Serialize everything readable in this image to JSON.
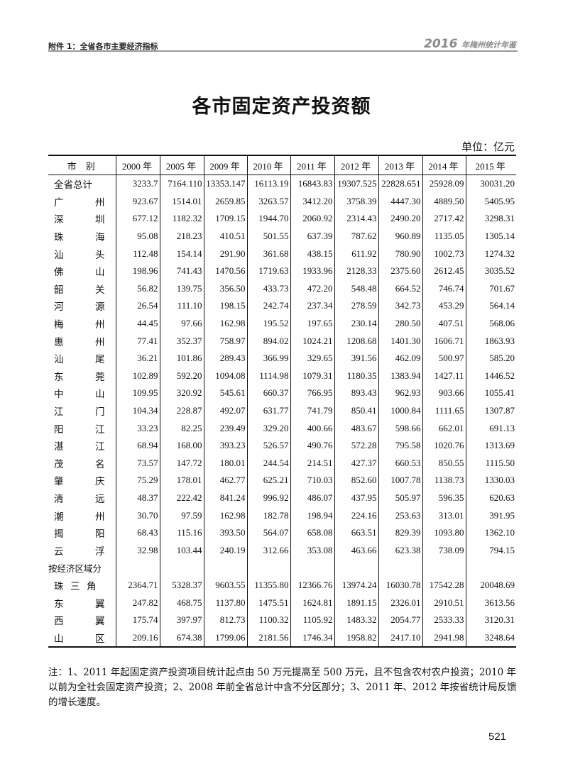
{
  "header": {
    "left": "附件 1：全省各市主要经济指标",
    "right_year": "2016",
    "right_book": "年梅州统计年鉴"
  },
  "title": "各市固定资产投资额",
  "unit": "单位：亿元",
  "table": {
    "columns": [
      "市　别",
      "2000 年",
      "2005 年",
      "2009 年",
      "2010 年",
      "2011 年",
      "2012 年",
      "2013 年",
      "2014 年",
      "2015 年"
    ],
    "rows": [
      {
        "name": [
          "全省总计"
        ],
        "values": [
          "3233.7",
          "7164.110",
          "13353.147",
          "16113.19",
          "16843.83",
          "19307.525",
          "22828.651",
          "25928.09",
          "30031.20"
        ]
      },
      {
        "name": [
          "广",
          "州"
        ],
        "values": [
          "923.67",
          "1514.01",
          "2659.85",
          "3263.57",
          "3412.20",
          "3758.39",
          "4447.30",
          "4889.50",
          "5405.95"
        ]
      },
      {
        "name": [
          "深",
          "圳"
        ],
        "values": [
          "677.12",
          "1182.32",
          "1709.15",
          "1944.70",
          "2060.92",
          "2314.43",
          "2490.20",
          "2717.42",
          "3298.31"
        ]
      },
      {
        "name": [
          "珠",
          "海"
        ],
        "values": [
          "95.08",
          "218.23",
          "410.51",
          "501.55",
          "637.39",
          "787.62",
          "960.89",
          "1135.05",
          "1305.14"
        ]
      },
      {
        "name": [
          "汕",
          "头"
        ],
        "values": [
          "112.48",
          "154.14",
          "291.90",
          "361.68",
          "438.15",
          "611.92",
          "780.90",
          "1002.73",
          "1274.32"
        ]
      },
      {
        "name": [
          "佛",
          "山"
        ],
        "values": [
          "198.96",
          "741.43",
          "1470.56",
          "1719.63",
          "1933.96",
          "2128.33",
          "2375.60",
          "2612.45",
          "3035.52"
        ]
      },
      {
        "name": [
          "韶",
          "关"
        ],
        "values": [
          "56.82",
          "139.75",
          "356.50",
          "433.73",
          "472.20",
          "548.48",
          "664.52",
          "746.74",
          "701.67"
        ]
      },
      {
        "name": [
          "河",
          "源"
        ],
        "values": [
          "26.54",
          "111.10",
          "198.15",
          "242.74",
          "237.34",
          "278.59",
          "342.73",
          "453.29",
          "564.14"
        ]
      },
      {
        "name": [
          "梅",
          "州"
        ],
        "values": [
          "44.45",
          "97.66",
          "162.98",
          "195.52",
          "197.65",
          "230.14",
          "280.50",
          "407.51",
          "568.06"
        ]
      },
      {
        "name": [
          "惠",
          "州"
        ],
        "values": [
          "77.41",
          "352.37",
          "758.97",
          "894.02",
          "1024.21",
          "1208.68",
          "1401.30",
          "1606.71",
          "1863.93"
        ]
      },
      {
        "name": [
          "汕",
          "尾"
        ],
        "values": [
          "36.21",
          "101.86",
          "289.43",
          "366.99",
          "329.65",
          "391.56",
          "462.09",
          "500.97",
          "585.20"
        ]
      },
      {
        "name": [
          "东",
          "莞"
        ],
        "values": [
          "102.89",
          "592.20",
          "1094.08",
          "1114.98",
          "1079.31",
          "1180.35",
          "1383.94",
          "1427.11",
          "1446.52"
        ]
      },
      {
        "name": [
          "中",
          "山"
        ],
        "values": [
          "109.95",
          "320.92",
          "545.61",
          "660.37",
          "766.95",
          "893.43",
          "962.93",
          "903.66",
          "1055.41"
        ]
      },
      {
        "name": [
          "江",
          "门"
        ],
        "values": [
          "104.34",
          "228.87",
          "492.07",
          "631.77",
          "741.79",
          "850.41",
          "1000.84",
          "1111.65",
          "1307.87"
        ]
      },
      {
        "name": [
          "阳",
          "江"
        ],
        "values": [
          "33.23",
          "82.25",
          "239.49",
          "329.20",
          "400.66",
          "483.67",
          "598.66",
          "662.01",
          "691.13"
        ]
      },
      {
        "name": [
          "湛",
          "江"
        ],
        "values": [
          "68.94",
          "168.00",
          "393.23",
          "526.57",
          "490.76",
          "572.28",
          "795.58",
          "1020.76",
          "1313.69"
        ]
      },
      {
        "name": [
          "茂",
          "名"
        ],
        "values": [
          "73.57",
          "147.72",
          "180.01",
          "244.54",
          "214.51",
          "427.37",
          "660.53",
          "850.55",
          "1115.50"
        ]
      },
      {
        "name": [
          "肇",
          "庆"
        ],
        "values": [
          "75.29",
          "178.01",
          "462.77",
          "625.21",
          "710.03",
          "852.60",
          "1007.78",
          "1138.73",
          "1330.03"
        ]
      },
      {
        "name": [
          "清",
          "远"
        ],
        "values": [
          "48.37",
          "222.42",
          "841.24",
          "996.92",
          "486.07",
          "437.95",
          "505.97",
          "596.35",
          "620.63"
        ]
      },
      {
        "name": [
          "潮",
          "州"
        ],
        "values": [
          "30.70",
          "97.59",
          "162.98",
          "182.78",
          "198.94",
          "224.16",
          "253.63",
          "313.01",
          "391.95"
        ]
      },
      {
        "name": [
          "揭",
          "阳"
        ],
        "values": [
          "68.43",
          "115.16",
          "393.50",
          "564.07",
          "658.08",
          "663.51",
          "829.39",
          "1093.80",
          "1362.10"
        ]
      },
      {
        "name": [
          "云",
          "浮"
        ],
        "values": [
          "32.98",
          "103.44",
          "240.19",
          "312.66",
          "353.08",
          "463.66",
          "623.38",
          "738.09",
          "794.15"
        ]
      },
      {
        "section": "按经济区域分"
      },
      {
        "name": [
          "珠",
          "三",
          "角"
        ],
        "values": [
          "2364.71",
          "5328.37",
          "9603.55",
          "11355.80",
          "12366.76",
          "13974.24",
          "16030.78",
          "17542.28",
          "20048.69"
        ]
      },
      {
        "name": [
          "东",
          "翼"
        ],
        "values": [
          "247.82",
          "468.75",
          "1137.80",
          "1475.51",
          "1624.81",
          "1891.15",
          "2326.01",
          "2910.51",
          "3613.56"
        ]
      },
      {
        "name": [
          "西",
          "翼"
        ],
        "values": [
          "175.74",
          "397.97",
          "812.73",
          "1100.32",
          "1105.92",
          "1483.32",
          "2054.77",
          "2533.33",
          "3120.31"
        ]
      },
      {
        "name": [
          "山",
          "区"
        ],
        "values": [
          "209.16",
          "674.38",
          "1799.06",
          "2181.56",
          "1746.34",
          "1958.82",
          "2417.10",
          "2941.98",
          "3248.64"
        ]
      }
    ]
  },
  "notes": "注：1、2011 年起固定资产投资项目统计起点由 50 万元提高至 500 万元，且不包含农村农户投资；2010 年以前为全社会固定资产投资；2、2008 年前全省总计中含不分区部分；3、2011 年、2012 年按省统计局反馈的增长速度。",
  "page_number": "521"
}
